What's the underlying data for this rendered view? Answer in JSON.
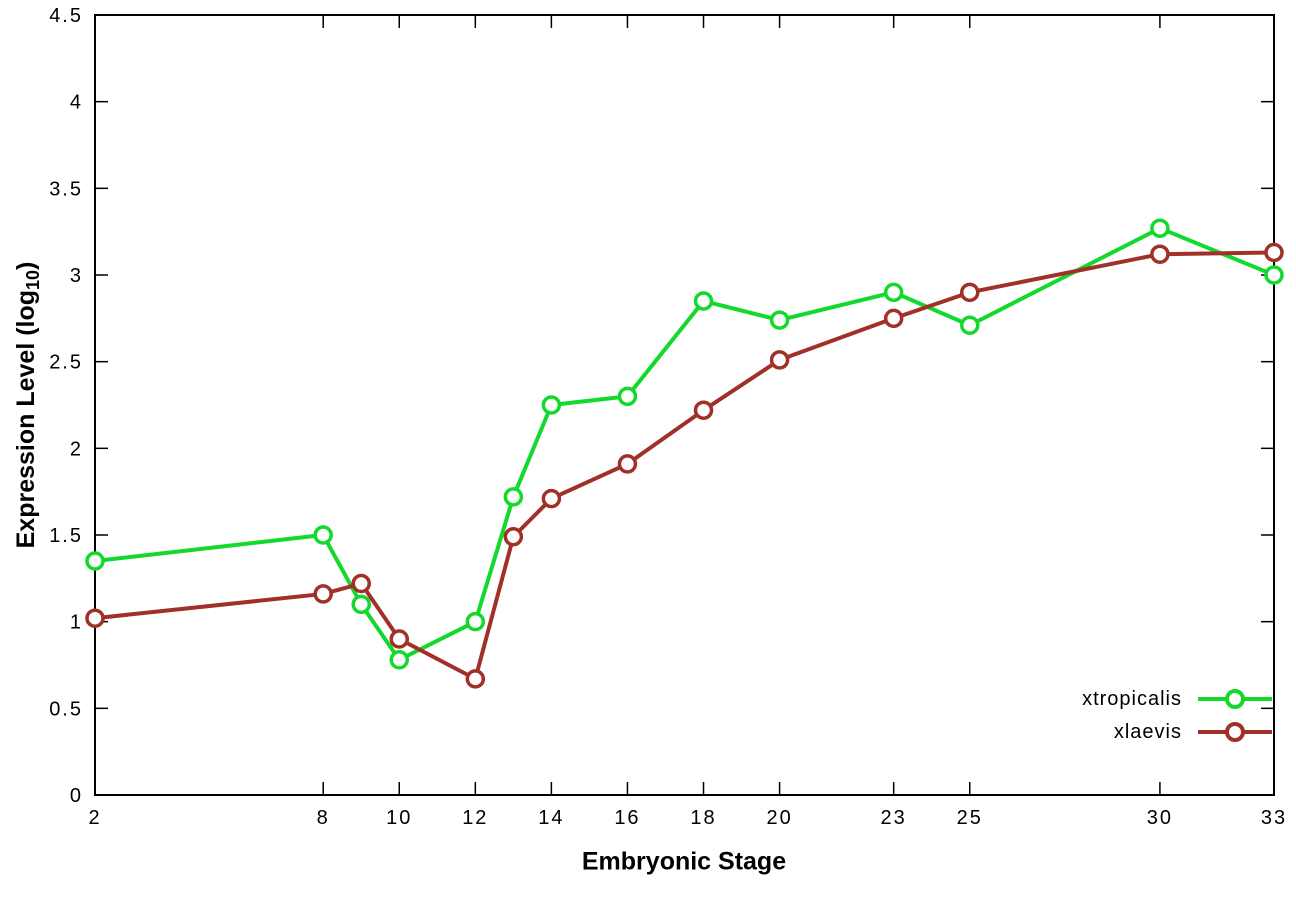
{
  "figure": {
    "background": "#ffffff",
    "axis_color": "#000000"
  },
  "axes": {
    "xlabel": "Embryonic Stage",
    "ylabel_pre": "Expression Level (log",
    "ylabel_sub": "10",
    "ylabel_post": ")"
  },
  "chart_data": {
    "type": "line",
    "title": "",
    "xlabel": "Embryonic Stage",
    "ylabel": "Expression Level (log10)",
    "xlim": [
      2,
      33
    ],
    "ylim": [
      0,
      4.5
    ],
    "grid": false,
    "legend_position": "bottom-right",
    "marker": "open-circle",
    "x": [
      2,
      8,
      9,
      10,
      12,
      13,
      14,
      16,
      18,
      20,
      23,
      25,
      30,
      33
    ],
    "xticks": {
      "values": [
        2,
        8,
        10,
        12,
        14,
        16,
        18,
        20,
        23,
        25,
        30,
        33
      ],
      "labels": [
        "2",
        "8",
        "10",
        "12",
        "14",
        "16",
        "18",
        "20",
        "23",
        "25",
        "30",
        "33"
      ]
    },
    "yticks": {
      "values": [
        0,
        0.5,
        1,
        1.5,
        2,
        2.5,
        3,
        3.5,
        4,
        4.5
      ],
      "labels": [
        "0",
        "0.5",
        "1",
        "1.5",
        "2",
        "2.5",
        "3",
        "3.5",
        "4",
        "4.5"
      ]
    },
    "series": [
      {
        "name": "xtropicalis",
        "color": "#12d92c",
        "values": [
          1.35,
          1.5,
          1.1,
          0.78,
          1.0,
          1.72,
          2.25,
          2.3,
          2.85,
          2.74,
          2.9,
          2.71,
          3.27,
          3.0
        ]
      },
      {
        "name": "xlaevis",
        "color": "#a03028",
        "values": [
          1.02,
          1.16,
          1.22,
          0.9,
          0.67,
          1.49,
          1.71,
          1.91,
          2.22,
          2.51,
          2.75,
          2.9,
          3.12,
          3.13
        ]
      }
    ]
  }
}
